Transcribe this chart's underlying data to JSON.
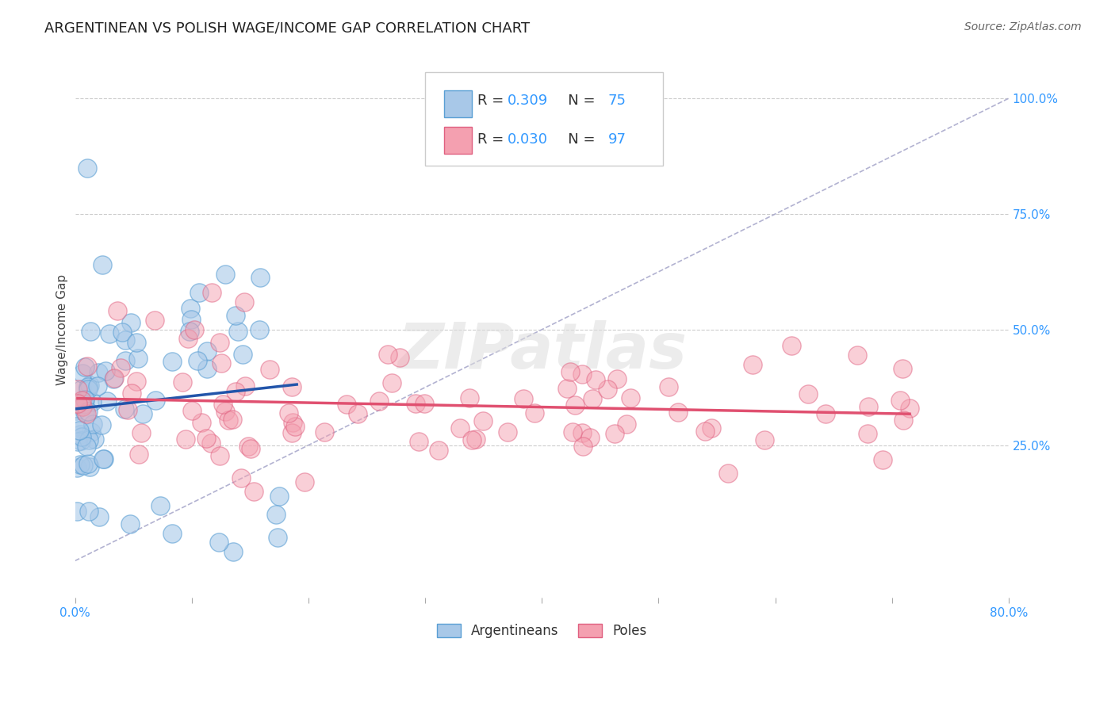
{
  "title": "ARGENTINEAN VS POLISH WAGE/INCOME GAP CORRELATION CHART",
  "source": "Source: ZipAtlas.com",
  "ylabel": "Wage/Income Gap",
  "xlim": [
    0.0,
    0.8
  ],
  "ylim": [
    -0.08,
    1.08
  ],
  "blue_color": "#a8c8e8",
  "blue_edge_color": "#5a9fd4",
  "pink_color": "#f4a0b0",
  "pink_edge_color": "#e06080",
  "blue_line_color": "#2255aa",
  "pink_line_color": "#e05070",
  "diag_line_color": "#aaaacc",
  "legend_label_blue": "Argentineans",
  "legend_label_pink": "Poles",
  "watermark": "ZIPatlas",
  "title_fontsize": 13,
  "axis_label_fontsize": 11,
  "tick_label_fontsize": 11,
  "legend_fontsize": 13,
  "source_fontsize": 10,
  "blue_N": 75,
  "pink_N": 97,
  "grid_color": "#cccccc",
  "background_color": "#ffffff",
  "accent_color": "#3399ff"
}
